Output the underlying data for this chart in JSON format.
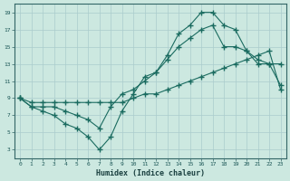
{
  "xlabel": "Humidex (Indice chaleur)",
  "bg_color": "#cce8e0",
  "grid_color": "#aacccc",
  "line_color": "#1a6b60",
  "line1_x": [
    0,
    1,
    2,
    3,
    4,
    5,
    6,
    7,
    8,
    9,
    10,
    11,
    12,
    13,
    14,
    15,
    16,
    17,
    18,
    19,
    20,
    21,
    22,
    23
  ],
  "line1_y": [
    9,
    8,
    7.5,
    7,
    6,
    5.5,
    4.5,
    3,
    4.5,
    7.5,
    9.5,
    11.5,
    12,
    14,
    16.5,
    17.5,
    19,
    19,
    17.5,
    17,
    14.5,
    13,
    13,
    10.5
  ],
  "line2_x": [
    0,
    1,
    2,
    3,
    4,
    5,
    6,
    7,
    8,
    9,
    10,
    11,
    12,
    13,
    14,
    15,
    16,
    17,
    18,
    19,
    20,
    21,
    22,
    23
  ],
  "line2_y": [
    9,
    8.5,
    8.5,
    8.5,
    8.5,
    8.5,
    8.5,
    8.5,
    8.5,
    8.5,
    9,
    9.5,
    9.5,
    10,
    10.5,
    11,
    11.5,
    12,
    12.5,
    13,
    13.5,
    14,
    14.5,
    10
  ],
  "line3_x": [
    0,
    1,
    2,
    3,
    4,
    5,
    6,
    7,
    8,
    9,
    10,
    11,
    12,
    13,
    14,
    15,
    16,
    17,
    18,
    19,
    20,
    21,
    22,
    23
  ],
  "line3_y": [
    9,
    8,
    8,
    8,
    7.5,
    7,
    6.5,
    5.5,
    8,
    9.5,
    10,
    11,
    12,
    13.5,
    15,
    16,
    17,
    17.5,
    15,
    15,
    14.5,
    13.5,
    13,
    13
  ],
  "ylim": [
    2,
    20
  ],
  "xlim": [
    -0.5,
    23.5
  ],
  "yticks": [
    3,
    5,
    7,
    9,
    11,
    13,
    15,
    17,
    19
  ],
  "xticks": [
    0,
    1,
    2,
    3,
    4,
    5,
    6,
    7,
    8,
    9,
    10,
    11,
    12,
    13,
    14,
    15,
    16,
    17,
    18,
    19,
    20,
    21,
    22,
    23
  ]
}
